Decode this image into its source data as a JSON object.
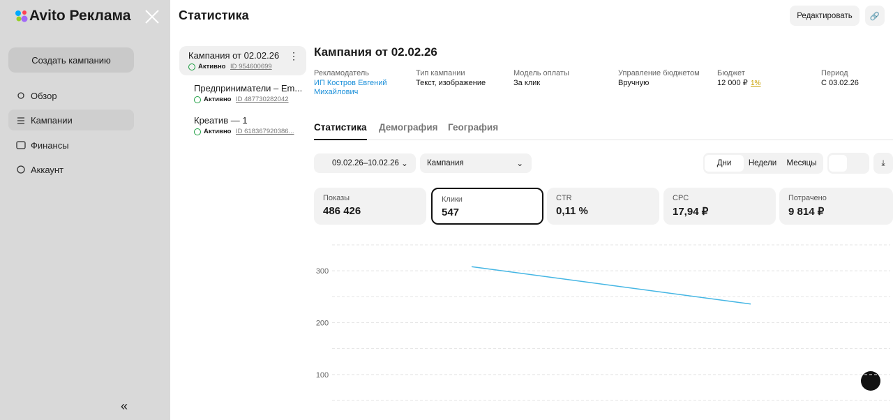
{
  "sidebar": {
    "brand": "Avito Реклама",
    "create_button": "Создать кампанию",
    "nav": [
      "Обзор",
      "Кампании",
      "Финансы",
      "Аккаунт"
    ]
  },
  "panel": {
    "title": "Статистика",
    "edit_button": "Редактировать"
  },
  "campaigns": [
    {
      "name": "Кампания от 02.02.26",
      "status": "Активно",
      "id": "ID 954600699"
    },
    {
      "name": "Предприниматели – Em...",
      "status": "Активно",
      "id": "ID 487730282042"
    },
    {
      "name": "Креатив — 1",
      "status": "Активно",
      "id": "ID 618367920386..."
    }
  ],
  "campaign": {
    "title": "Кампания от 02.02.26",
    "info": [
      {
        "label": "Рекламодатель",
        "value": "ИП Костров Евгений Михайлович"
      },
      {
        "label": "Тип кампании",
        "value": "Текст, изображение"
      },
      {
        "label": "Модель оплаты",
        "value": "За клик"
      },
      {
        "label": "Управление бюджетом",
        "value": "Вручную"
      },
      {
        "label": "Бюджет",
        "value": "12 000 ₽",
        "note": "1%"
      },
      {
        "label": "Период",
        "value": "С 03.02.26"
      }
    ]
  },
  "tabs": [
    "Статистика",
    "Демография",
    "География"
  ],
  "filters": {
    "date_range": "09.02.26–10.02.26",
    "level": "Кампания",
    "periods": [
      "Дни",
      "Недели",
      "Месяцы"
    ]
  },
  "metrics": [
    {
      "label": "Показы",
      "value": "486 426"
    },
    {
      "label": "Клики",
      "value": "547"
    },
    {
      "label": "CTR",
      "value": "0,11 %"
    },
    {
      "label": "CPC",
      "value": "17,94 ₽"
    },
    {
      "label": "Потрачено",
      "value": "9 814 ₽"
    }
  ],
  "chart_data": {
    "type": "line",
    "categories": [
      null,
      null
    ],
    "series": [
      {
        "values": [
          308,
          236
        ],
        "color": "#45b6e4"
      }
    ],
    "ylim": [
      50,
      350
    ],
    "yticks": [
      100,
      200,
      300
    ],
    "minor_yticks": [
      50,
      150,
      250,
      350
    ],
    "grid": true
  }
}
